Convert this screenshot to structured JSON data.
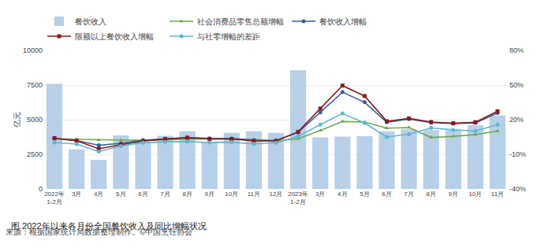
{
  "chart_data": {
    "type": "bar",
    "title": "图 2022年以来各月份全国餐饮收入及同比增幅状况",
    "annotations": [
      "来源：根据国家统计局数据整理制作。©中国烹饪协会"
    ],
    "ylabel": "亿元",
    "categories": [
      "2022年\n1-2月",
      "3月",
      "4月",
      "5月",
      "6月",
      "7月",
      "8月",
      "9月",
      "10月",
      "11月",
      "12月",
      "2023年\n1-2月",
      "3月",
      "4月",
      "5月",
      "6月",
      "7月",
      "8月",
      "9月",
      "10月",
      "11月"
    ],
    "series": [
      {
        "name": "餐饮收入",
        "type": "bar",
        "color": "#b8cfe8",
        "values": [
          7590,
          2870,
          2100,
          3870,
          3380,
          3840,
          4160,
          3380,
          4050,
          4160,
          4050,
          8560,
          3720,
          3780,
          3800,
          4160,
          4300,
          4250,
          4250,
          4600,
          5300
        ]
      },
      {
        "name": "社会消费品零售总额增幅",
        "type": "line",
        "axis": "y2",
        "color": "#6aaa4c",
        "marker": "triangle",
        "values": [
          3.5,
          3.0,
          2.4,
          2.3,
          2.2,
          2.7,
          3.5,
          3.5,
          3.2,
          3.0,
          1.8,
          3.5,
          10.6,
          18.4,
          18.0,
          12.7,
          13.1,
          4.6,
          5.5,
          7.1,
          10.1
        ]
      },
      {
        "name": "餐饮收入增幅",
        "type": "line",
        "axis": "y2",
        "color": "#3a5fa0",
        "marker": "circle",
        "values": [
          3.6,
          1.9,
          -2.2,
          -0.5,
          2.2,
          3.5,
          4.5,
          3.8,
          3.7,
          2.0,
          1.9,
          9.0,
          26.3,
          43.8,
          35.1,
          17.7,
          20.5,
          17.4,
          16.7,
          17.2,
          25.8
        ]
      },
      {
        "name": "限额以上餐饮收入增幅",
        "type": "line",
        "axis": "y2",
        "color": "#8b1a1a",
        "marker": "square",
        "values": [
          4.0,
          1.7,
          -5.2,
          -1.6,
          1.4,
          3.2,
          4.4,
          3.3,
          3.3,
          1.6,
          1.6,
          9.5,
          29.6,
          49.5,
          40.5,
          18.6,
          21.1,
          18.0,
          16.9,
          17.8,
          27.3
        ]
      },
      {
        "name": "与社零增幅的差距",
        "type": "line",
        "axis": "y2",
        "color": "#5bb8d4",
        "marker": "circle",
        "values": [
          0.2,
          -1.1,
          -7.6,
          -2.8,
          0.0,
          0.8,
          1.0,
          0.3,
          0.5,
          -1.0,
          0.1,
          5.5,
          15.7,
          25.4,
          17.1,
          5.0,
          7.4,
          12.8,
          11.2,
          10.1,
          15.7
        ]
      }
    ],
    "ylim": [
      0,
      10000
    ],
    "yticks": [
      0,
      2500,
      5000,
      7500,
      10000
    ],
    "y2lim": [
      -40,
      80
    ],
    "y2ticks": [
      {
        "value": -40,
        "label": "-40%"
      },
      {
        "value": -10,
        "label": "-10%"
      },
      {
        "value": 20,
        "label": "20%"
      },
      {
        "value": 50,
        "label": "50%"
      },
      {
        "value": 80,
        "label": "80%"
      }
    ],
    "grid": true,
    "legend": "top"
  }
}
